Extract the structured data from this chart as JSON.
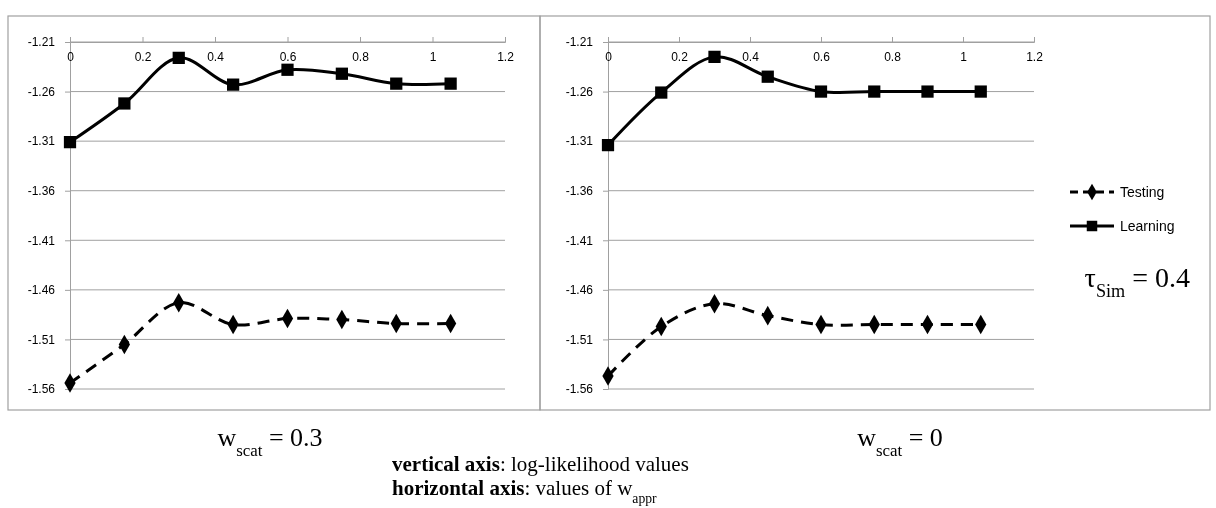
{
  "chart_data": [
    {
      "type": "line",
      "xlabel": "w$_{scat}$ = 0.3",
      "x": [
        0,
        0.15,
        0.3,
        0.45,
        0.6,
        0.75,
        0.9,
        1.05
      ],
      "xlim": [
        0,
        1.2
      ],
      "xticks": [
        0,
        0.2,
        0.4,
        0.6,
        0.8,
        1,
        1.2
      ],
      "ylim": [
        -1.56,
        -1.21
      ],
      "yticks": [
        -1.56,
        -1.51,
        -1.46,
        -1.41,
        -1.36,
        -1.31,
        -1.26,
        -1.21
      ],
      "grid": "y",
      "series": [
        {
          "color": "#000000",
          "marker": "diamond",
          "line_style": "dashed",
          "values": [
            -1.554,
            -1.515,
            -1.473,
            -1.495,
            -1.489,
            -1.49,
            -1.494,
            -1.494
          ]
        },
        {
          "color": "#000000",
          "marker": "square",
          "line_style": "solid",
          "values": [
            -1.311,
            -1.272,
            -1.226,
            -1.253,
            -1.238,
            -1.242,
            -1.252,
            -1.252
          ]
        }
      ]
    },
    {
      "type": "line",
      "xlabel": "w$_{scat}$ = 0",
      "x": [
        0,
        0.15,
        0.3,
        0.45,
        0.6,
        0.75,
        0.9,
        1.05
      ],
      "xlim": [
        0,
        1.2
      ],
      "xticks": [
        0,
        0.2,
        0.4,
        0.6,
        0.8,
        1,
        1.2
      ],
      "ylim": [
        -1.56,
        -1.21
      ],
      "yticks": [
        -1.56,
        -1.51,
        -1.46,
        -1.41,
        -1.36,
        -1.31,
        -1.26,
        -1.21
      ],
      "grid": "y",
      "legend": "right",
      "annotations": [
        "τ$_{Sim}$ = 0.4",
        "vertical axis: log-likelihood values",
        "horizontal axis: values of w$_{appr}$"
      ],
      "series": [
        {
          "name": "Testing",
          "color": "#000000",
          "marker": "diamond",
          "line_style": "dashed",
          "values": [
            -1.547,
            -1.497,
            -1.474,
            -1.486,
            -1.495,
            -1.495,
            -1.495,
            -1.495
          ]
        },
        {
          "name": "Learning",
          "color": "#000000",
          "marker": "square",
          "line_style": "solid",
          "values": [
            -1.314,
            -1.261,
            -1.225,
            -1.245,
            -1.26,
            -1.26,
            -1.26,
            -1.26
          ]
        }
      ]
    }
  ]
}
